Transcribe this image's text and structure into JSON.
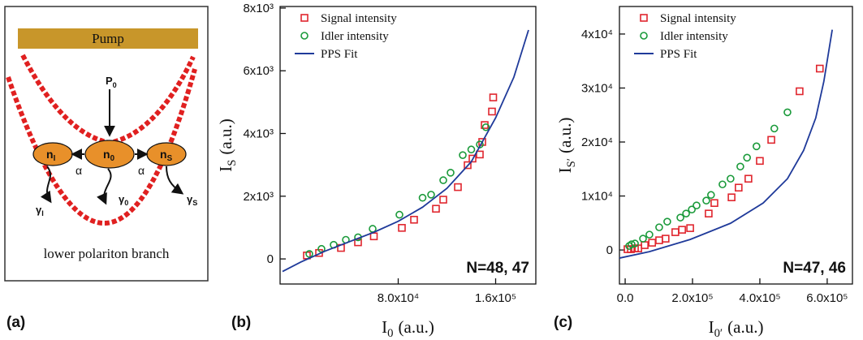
{
  "diagram": {
    "pump": "Pump",
    "source": {
      "text": "P",
      "sub": "0"
    },
    "nodes": [
      {
        "text": "n",
        "sub": "I"
      },
      {
        "text": "n",
        "sub": "0"
      },
      {
        "text": "n",
        "sub": "S"
      }
    ],
    "couplings": [
      "α",
      "α"
    ],
    "losses": [
      {
        "text": "γ",
        "sub": "I"
      },
      {
        "text": "γ",
        "sub": "0"
      },
      {
        "text": "γ",
        "sub": "S"
      }
    ],
    "caption": "lower polariton branch"
  },
  "panel_labels": [
    "(a)",
    "(b)",
    "(c)"
  ],
  "chart_data": [
    {
      "type": "scatter",
      "xlabel": {
        "text": "I",
        "sub": "0",
        "unit": "(a.u.)"
      },
      "ylabel": {
        "text": "I",
        "sub": "S",
        "unit": "(a.u.)"
      },
      "annotation": "N=48, 47",
      "legend": "upper left",
      "xlim": [
        -17000,
        193000
      ],
      "ylim": [
        -800,
        8050
      ],
      "xticks": [
        {
          "value": 80000,
          "label": "8.0x10⁴"
        },
        {
          "value": 160000,
          "label": "1.6x10⁵"
        }
      ],
      "yticks": [
        0,
        {
          "value": 2000,
          "label": "2x10³"
        },
        {
          "value": 4000,
          "label": "4x10³"
        },
        {
          "value": 6000,
          "label": "6x10³"
        },
        {
          "value": 8000,
          "label": "8x10³"
        }
      ],
      "series": [
        {
          "name": "Signal intensity",
          "color": "#e0262e",
          "marker": "square",
          "x": [
            5000,
            15000,
            33000,
            47000,
            60000,
            83000,
            93000,
            111000,
            117000,
            129000,
            137000,
            141000,
            147000,
            149000,
            151000,
            157000,
            158000
          ],
          "values": [
            110,
            190,
            350,
            530,
            720,
            990,
            1250,
            1600,
            1890,
            2290,
            2990,
            3200,
            3330,
            3730,
            4270,
            4700,
            5150
          ]
        },
        {
          "name": "Idler intensity",
          "color": "#1a9a3a",
          "marker": "circle",
          "x": [
            7000,
            17000,
            27000,
            37000,
            47000,
            59000,
            81000,
            100000,
            107000,
            117000,
            123000,
            133000,
            140000,
            147000,
            152000
          ],
          "values": [
            160,
            320,
            450,
            610,
            690,
            960,
            1410,
            1950,
            2050,
            2510,
            2750,
            3310,
            3490,
            3650,
            4200
          ]
        },
        {
          "name": "PPS  Fit",
          "color": "#1f3a9a",
          "marker": "line",
          "x": [
            -15000,
            0,
            20000,
            40000,
            60000,
            80000,
            100000,
            120000,
            140000,
            160000,
            175000,
            187000
          ],
          "values": [
            -400,
            -100,
            250,
            550,
            850,
            1200,
            1650,
            2250,
            3100,
            4500,
            5800,
            7300
          ]
        }
      ]
    },
    {
      "type": "scatter",
      "xlabel": {
        "text": "I",
        "sub": "0′",
        "unit": "(a.u.)"
      },
      "ylabel": {
        "text": "I",
        "sub": "S′",
        "unit": "(a.u.)"
      },
      "annotation": "N=47, 46",
      "legend": "upper left",
      "xlim": [
        -17000,
        675000
      ],
      "ylim": [
        -6300,
        45100
      ],
      "xticks": [
        {
          "value": 0,
          "label": "0.0"
        },
        {
          "value": 200000,
          "label": "2.0x10⁵"
        },
        {
          "value": 400000,
          "label": "4.0x10⁵"
        },
        {
          "value": 600000,
          "label": "6.0x10⁵"
        }
      ],
      "yticks": [
        0,
        {
          "value": 10000,
          "label": "1x10⁴"
        },
        {
          "value": 20000,
          "label": "2x10⁴"
        },
        {
          "value": 30000,
          "label": "3x10⁴"
        },
        {
          "value": 40000,
          "label": "4x10⁴"
        }
      ],
      "series": [
        {
          "name": "Signal intensity",
          "color": "#e0262e",
          "marker": "square",
          "x": [
            7000,
            17000,
            29000,
            39000,
            58000,
            80000,
            101000,
            120000,
            149000,
            169000,
            193000,
            248000,
            265000,
            316000,
            337000,
            366000,
            400000,
            434000,
            518000,
            578000
          ],
          "values": [
            150,
            150,
            300,
            300,
            900,
            1350,
            1800,
            2100,
            3300,
            3750,
            4050,
            6750,
            8700,
            9750,
            11550,
            13200,
            16500,
            20400,
            29400,
            33600
          ]
        },
        {
          "name": "Idler intensity",
          "color": "#1a9a3a",
          "marker": "circle",
          "x": [
            12000,
            19000,
            29000,
            53000,
            72000,
            101000,
            125000,
            164000,
            181000,
            198000,
            212000,
            241000,
            255000,
            289000,
            313000,
            342000,
            362000,
            390000,
            443000,
            482000
          ],
          "values": [
            750,
            1050,
            1200,
            2100,
            2850,
            4200,
            5250,
            6000,
            6750,
            7500,
            8250,
            9150,
            10200,
            12150,
            13200,
            15450,
            17100,
            19200,
            22500,
            25500
          ]
        },
        {
          "name": "PPS  Fit",
          "color": "#1f3a9a",
          "marker": "line",
          "x": [
            -17000,
            72000,
            193000,
            313000,
            410000,
            482000,
            530000,
            566000,
            590000,
            615000
          ],
          "values": [
            -1500,
            -300,
            1950,
            4950,
            8700,
            13200,
            18450,
            24450,
            31200,
            40800
          ]
        }
      ]
    }
  ]
}
